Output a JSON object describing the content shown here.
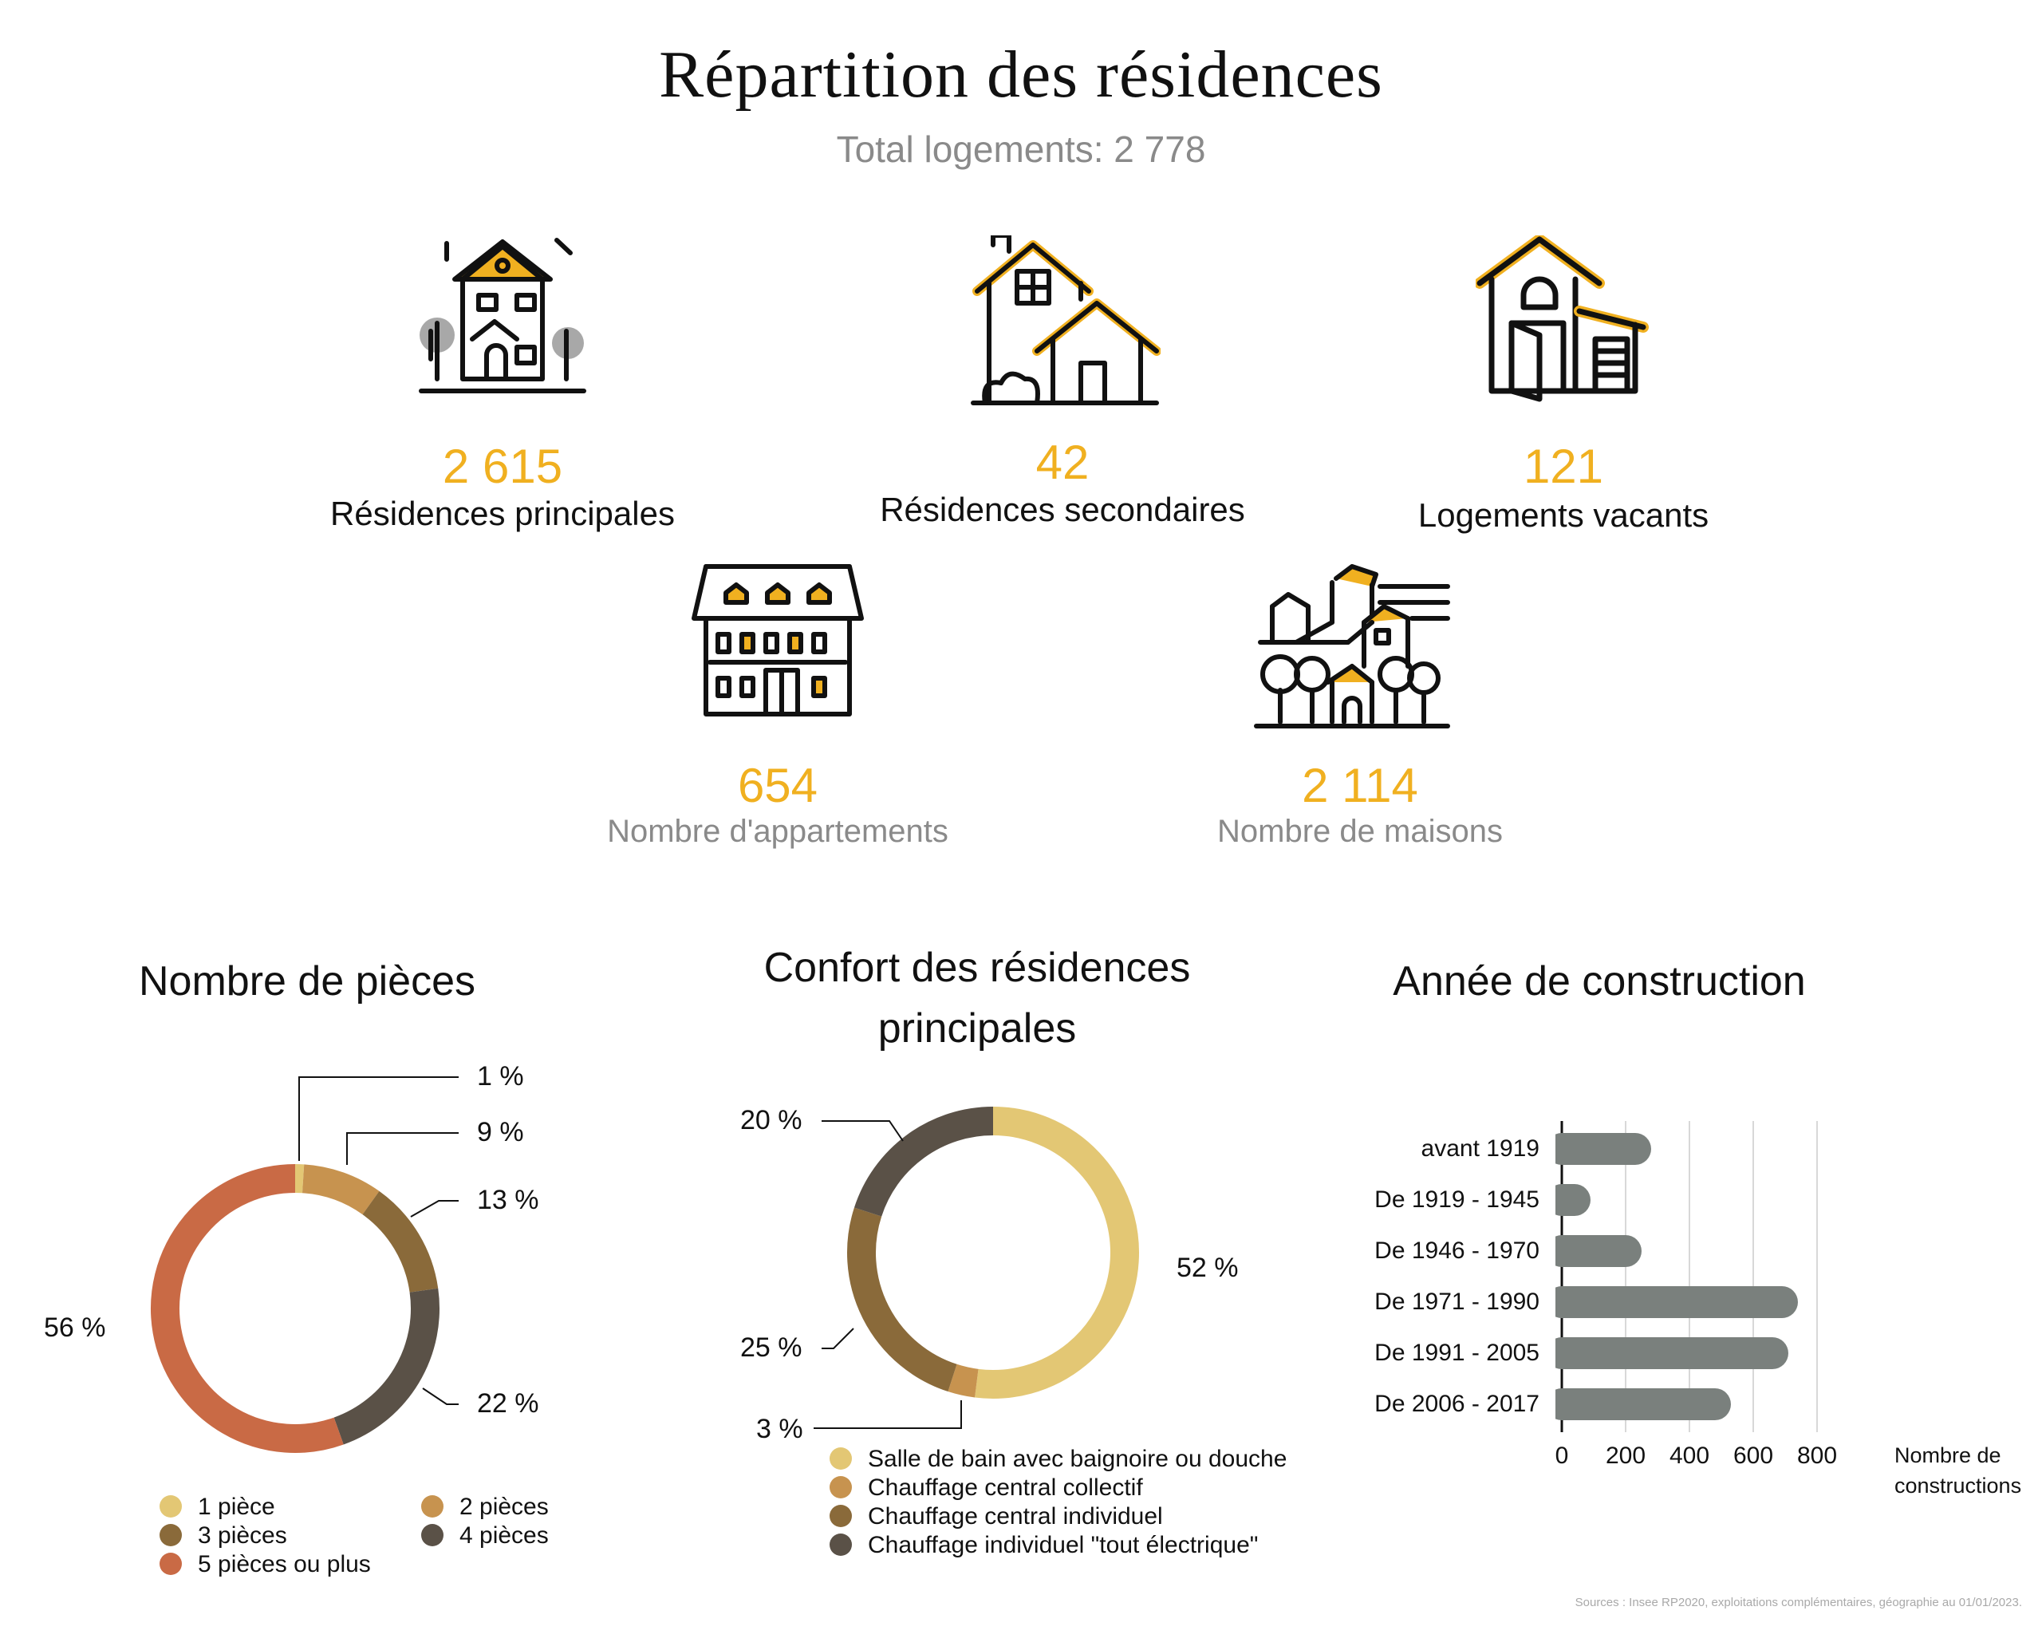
{
  "header": {
    "title": "Répartition des résidences",
    "subtitle": "Total logements: 2 778"
  },
  "stats": [
    {
      "value": "2 615",
      "label": "Résidences principales",
      "icon": "townhouse-icon"
    },
    {
      "value": "42",
      "label": "Résidences secondaires",
      "icon": "two-houses-icon"
    },
    {
      "value": "121",
      "label": "Logements vacants",
      "icon": "house-open-door-icon"
    },
    {
      "value": "654",
      "label": "Nombre d'appartements",
      "icon": "apartment-building-icon"
    },
    {
      "value": "2 114",
      "label": "Nombre de maisons",
      "icon": "village-icon"
    }
  ],
  "colors": {
    "accent": "#f0b020",
    "piece_1": "#e3c774",
    "piece_2": "#c7934f",
    "piece_3": "#8a6a3a",
    "piece_4": "#5a5147",
    "piece_5": "#c96a45",
    "confort_1": "#e3c774",
    "confort_2": "#c7934f",
    "confort_3": "#8a6a3a",
    "confort_4": "#5a5147",
    "bars": "#7a807d"
  },
  "chart_data": [
    {
      "type": "pie",
      "title": "Nombre de pièces",
      "categories": [
        "1 pièce",
        "2 pièces",
        "3 pièces",
        "4 pièces",
        "5 pièces ou plus"
      ],
      "values": [
        1,
        9,
        13,
        22,
        56
      ],
      "value_labels": [
        "1 %",
        "9 %",
        "13 %",
        "22 %",
        "56 %"
      ],
      "legend": [
        "1 pièce",
        "2 pièces",
        "3 pièces",
        "4 pièces",
        "5 pièces ou plus"
      ],
      "legend_position": "bottom"
    },
    {
      "type": "pie",
      "title": "Confort des résidences principales",
      "categories": [
        "Salle de bain avec baignoire ou douche",
        "Chauffage central collectif",
        "Chauffage central individuel",
        "Chauffage individuel \"tout électrique\""
      ],
      "values": [
        52,
        3,
        25,
        20
      ],
      "value_labels": [
        "52 %",
        "3 %",
        "25 %",
        "20 %"
      ],
      "legend": [
        "Salle de bain avec baignoire ou douche",
        "Chauffage central collectif",
        "Chauffage central individuel",
        "Chauffage individuel \"tout électrique\""
      ],
      "legend_position": "bottom"
    },
    {
      "type": "bar",
      "orientation": "horizontal",
      "title": "Année de construction",
      "categories": [
        "avant 1919",
        "De 1919 - 1945",
        "De 1946 - 1970",
        "De 1971 - 1990",
        "De 1991 - 2005",
        "De 2006 - 2017"
      ],
      "values": [
        280,
        90,
        250,
        740,
        710,
        530
      ],
      "xlabel": "Nombre de constructions",
      "xlim": [
        0,
        800
      ],
      "xticks": [
        "0",
        "200",
        "400",
        "600",
        "800"
      ],
      "grid": true
    }
  ],
  "footer": {
    "source": "Sources : Insee RP2020, exploitations complémentaires, géographie au 01/01/2023."
  }
}
